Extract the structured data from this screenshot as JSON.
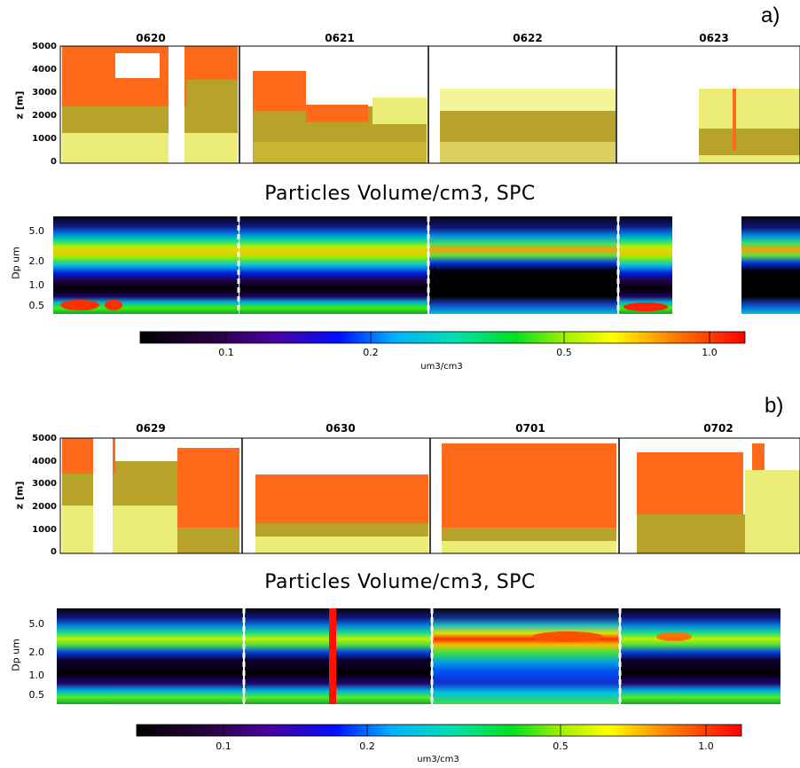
{
  "chart_data": [
    {
      "panel": "a)",
      "type": "heatmap",
      "title": "",
      "ylabel": "z [m]",
      "ylim": [
        0,
        5000
      ],
      "yticks": [
        "5000",
        "4000",
        "3000",
        "2000",
        "1000",
        "0"
      ],
      "days": [
        "0620",
        "0621",
        "0622",
        "0623"
      ],
      "layers": [
        {
          "day": "0620",
          "white_frac": 0.12,
          "orange_top": 5000,
          "orange_bottom": 2600,
          "olive_top": 2600,
          "olive_bottom": 1100,
          "yellow_top": 1600,
          "yellow_bottom": 0
        },
        {
          "day": "0621",
          "white_frac": 0.1,
          "orange_top": 4000,
          "orange_bottom": 2300,
          "olive_top": 3000,
          "olive_bottom": 0,
          "yellow_top": 1200,
          "yellow_bottom": 0
        },
        {
          "day": "0622",
          "white_frac": 0.05,
          "orange_top": 0,
          "orange_bottom": 0,
          "olive_top": 1800,
          "olive_bottom": 0,
          "yellow_top": 2700,
          "yellow_bottom": 1200
        },
        {
          "day": "0623",
          "white_frac": 0.45,
          "orange_top": 0,
          "orange_bottom": 0,
          "olive_top": 1200,
          "olive_bottom": 0,
          "yellow_top": 2500,
          "yellow_bottom": 0
        }
      ]
    },
    {
      "panel": "a)",
      "type": "heatmap",
      "title": "Particles Volume/cm3, SPC",
      "ylabel": "Dp um",
      "yticks": [
        "5.0",
        "2.0",
        "1.0",
        "0.5"
      ],
      "colorbar": {
        "ticks": [
          "0.1",
          "0.2",
          "0.5",
          "1.0"
        ],
        "label": "um3/cm3"
      },
      "days": [
        "0620",
        "0621",
        "0622",
        "0623"
      ],
      "mode_peaks_um": [
        0.45,
        2.5
      ],
      "gap_after_day": "0623"
    },
    {
      "panel": "b)",
      "type": "heatmap",
      "title": "",
      "ylabel": "z [m]",
      "ylim": [
        0,
        5000
      ],
      "yticks": [
        "5000",
        "4000",
        "3000",
        "2000",
        "1000",
        "0"
      ],
      "days": [
        "0629",
        "0630",
        "0701",
        "0702"
      ],
      "layers": [
        {
          "day": "0629",
          "white_frac": 0.08,
          "orange_top": 5000,
          "orange_bottom": 2200,
          "olive_top": 2600,
          "olive_bottom": 0,
          "yellow_top": 3000,
          "yellow_bottom": 0
        },
        {
          "day": "0630",
          "white_frac": 0.1,
          "orange_top": 3800,
          "orange_bottom": 1400,
          "olive_top": 1600,
          "olive_bottom": 200,
          "yellow_top": 800,
          "yellow_bottom": 0
        },
        {
          "day": "0701",
          "white_frac": 0.03,
          "orange_top": 4900,
          "orange_bottom": 900,
          "olive_top": 1100,
          "olive_bottom": 200,
          "yellow_top": 400,
          "yellow_bottom": 0
        },
        {
          "day": "0702",
          "white_frac": 0.15,
          "orange_top": 4600,
          "orange_bottom": 1800,
          "olive_top": 2200,
          "olive_bottom": 0,
          "yellow_top": 3000,
          "yellow_bottom": 0
        }
      ]
    },
    {
      "panel": "b)",
      "type": "heatmap",
      "title": "Particles Volume/cm3, SPC",
      "ylabel": "Dp um",
      "yticks": [
        "5.0",
        "2.0",
        "1.0",
        "0.5"
      ],
      "colorbar": {
        "ticks": [
          "0.1",
          "0.2",
          "0.5",
          "1.0"
        ],
        "label": "um3/cm3"
      },
      "days": [
        "0629",
        "0630",
        "0701",
        "0702"
      ],
      "mode_peaks_um": [
        0.45,
        2.3
      ]
    }
  ],
  "colors": {
    "orange": "#ff6a1a",
    "olive": "#b8a32a",
    "yellow": "#ecec78",
    "light_yellow": "#f4f49a"
  }
}
